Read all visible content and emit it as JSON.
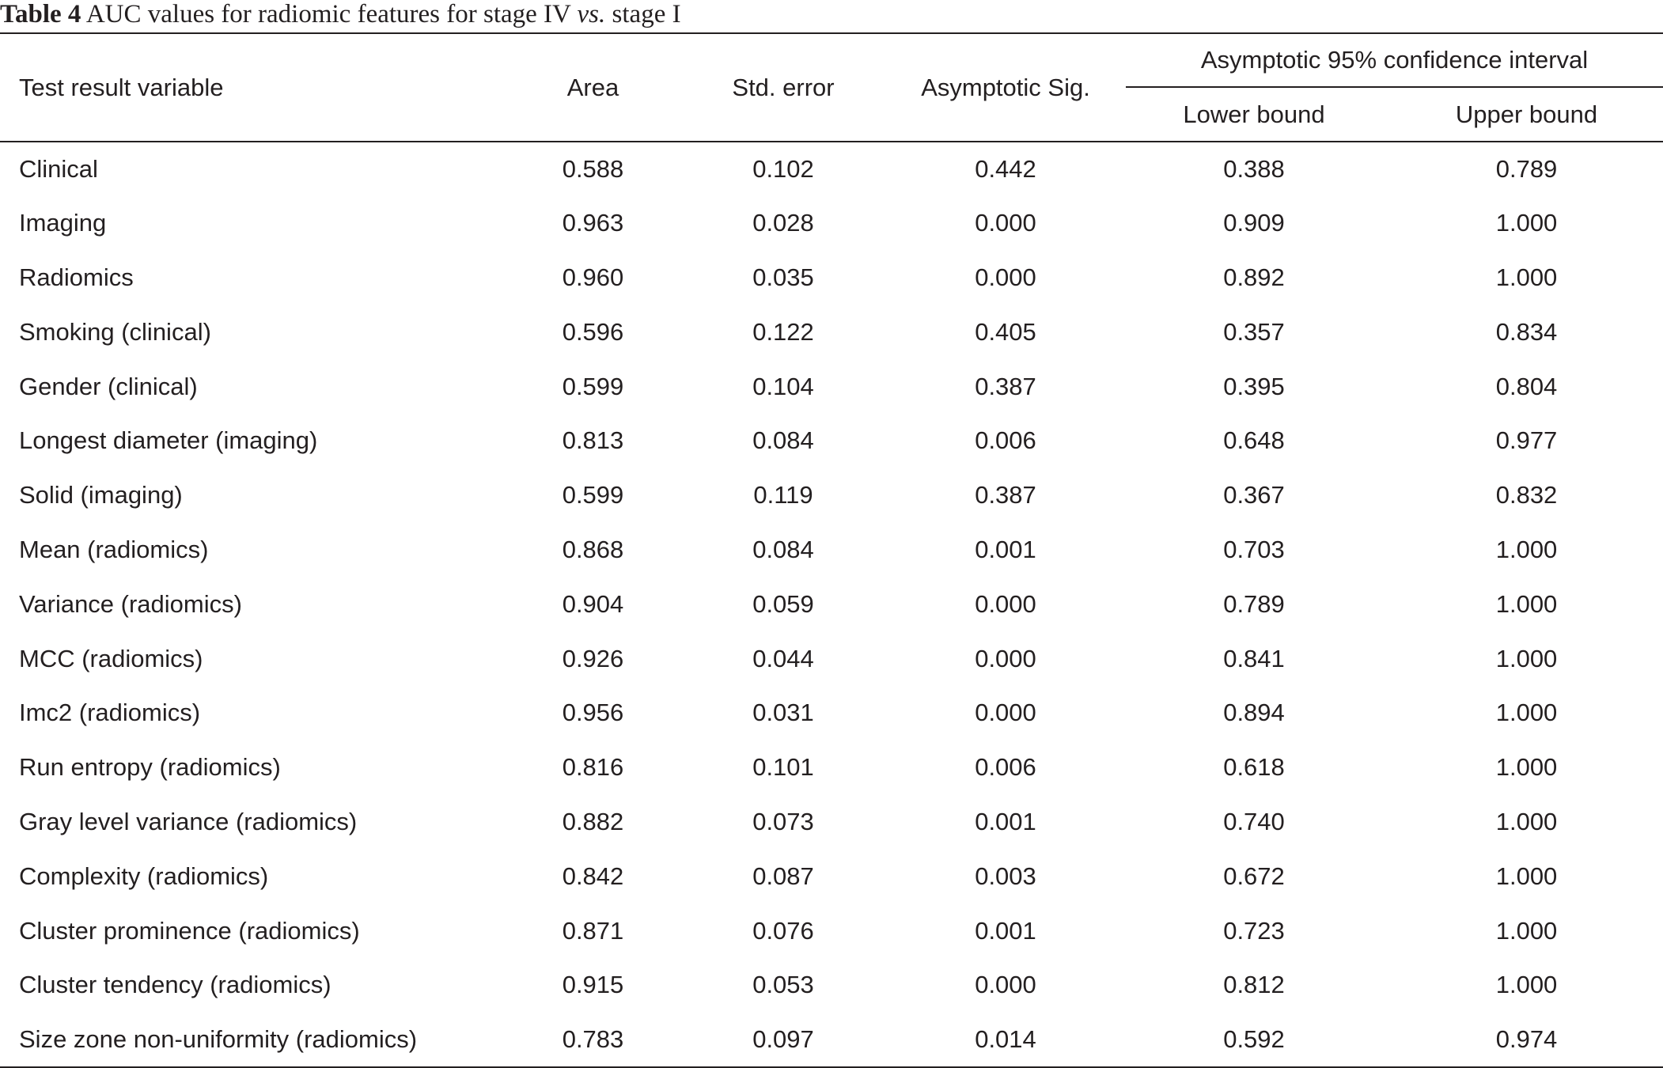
{
  "caption": {
    "label": "Table 4",
    "text_before": " AUC values for radiomic features for stage IV ",
    "vs": "vs.",
    "text_after": " stage I"
  },
  "headers": {
    "variable": "Test result variable",
    "area": "Area",
    "std_error": "Std. error",
    "sig": "Asymptotic Sig.",
    "ci_group": "Asymptotic 95% confidence interval",
    "lower": "Lower bound",
    "upper": "Upper bound"
  },
  "rows": [
    {
      "variable": "Clinical",
      "area": "0.588",
      "std_error": "0.102",
      "sig": "0.442",
      "lower": "0.388",
      "upper": "0.789"
    },
    {
      "variable": "Imaging",
      "area": "0.963",
      "std_error": "0.028",
      "sig": "0.000",
      "lower": "0.909",
      "upper": "1.000"
    },
    {
      "variable": "Radiomics",
      "area": "0.960",
      "std_error": "0.035",
      "sig": "0.000",
      "lower": "0.892",
      "upper": "1.000"
    },
    {
      "variable": "Smoking (clinical)",
      "area": "0.596",
      "std_error": "0.122",
      "sig": "0.405",
      "lower": "0.357",
      "upper": "0.834"
    },
    {
      "variable": "Gender (clinical)",
      "area": "0.599",
      "std_error": "0.104",
      "sig": "0.387",
      "lower": "0.395",
      "upper": "0.804"
    },
    {
      "variable": "Longest diameter (imaging)",
      "area": "0.813",
      "std_error": "0.084",
      "sig": "0.006",
      "lower": "0.648",
      "upper": "0.977"
    },
    {
      "variable": "Solid (imaging)",
      "area": "0.599",
      "std_error": "0.119",
      "sig": "0.387",
      "lower": "0.367",
      "upper": "0.832"
    },
    {
      "variable": "Mean (radiomics)",
      "area": "0.868",
      "std_error": "0.084",
      "sig": "0.001",
      "lower": "0.703",
      "upper": "1.000"
    },
    {
      "variable": "Variance (radiomics)",
      "area": "0.904",
      "std_error": "0.059",
      "sig": "0.000",
      "lower": "0.789",
      "upper": "1.000"
    },
    {
      "variable": "MCC (radiomics)",
      "area": "0.926",
      "std_error": "0.044",
      "sig": "0.000",
      "lower": "0.841",
      "upper": "1.000"
    },
    {
      "variable": "Imc2 (radiomics)",
      "area": "0.956",
      "std_error": "0.031",
      "sig": "0.000",
      "lower": "0.894",
      "upper": "1.000"
    },
    {
      "variable": "Run entropy (radiomics)",
      "area": "0.816",
      "std_error": "0.101",
      "sig": "0.006",
      "lower": "0.618",
      "upper": "1.000"
    },
    {
      "variable": "Gray level variance (radiomics)",
      "area": "0.882",
      "std_error": "0.073",
      "sig": "0.001",
      "lower": "0.740",
      "upper": "1.000"
    },
    {
      "variable": "Complexity (radiomics)",
      "area": "0.842",
      "std_error": "0.087",
      "sig": "0.003",
      "lower": "0.672",
      "upper": "1.000"
    },
    {
      "variable": "Cluster prominence (radiomics)",
      "area": "0.871",
      "std_error": "0.076",
      "sig": "0.001",
      "lower": "0.723",
      "upper": "1.000"
    },
    {
      "variable": "Cluster tendency (radiomics)",
      "area": "0.915",
      "std_error": "0.053",
      "sig": "0.000",
      "lower": "0.812",
      "upper": "1.000"
    },
    {
      "variable": "Size zone non-uniformity (radiomics)",
      "area": "0.783",
      "std_error": "0.097",
      "sig": "0.014",
      "lower": "0.592",
      "upper": "0.974"
    }
  ]
}
